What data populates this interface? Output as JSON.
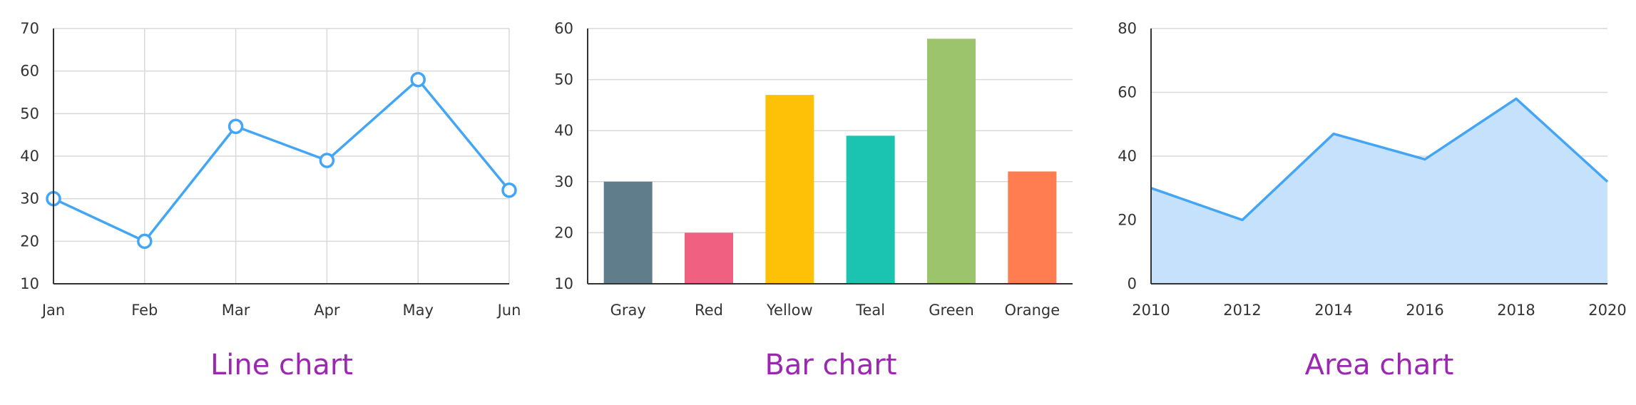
{
  "colors": {
    "line": "#42a5f5",
    "area_fill": "#c6e1fb",
    "grid": "#d9d9d9",
    "axis": "#333333",
    "caption": "#9c27b0"
  },
  "chart_data": [
    {
      "type": "line",
      "caption": "Line chart",
      "categories": [
        "Jan",
        "Feb",
        "Mar",
        "Apr",
        "May",
        "Jun"
      ],
      "values": [
        30,
        20,
        47,
        39,
        58,
        32
      ],
      "ylim": [
        10,
        70
      ],
      "yticks": [
        10,
        20,
        30,
        40,
        50,
        60,
        70
      ],
      "grid": "both",
      "markers": "hollow-circle"
    },
    {
      "type": "bar",
      "caption": "Bar chart",
      "categories": [
        "Gray",
        "Red",
        "Yellow",
        "Teal",
        "Green",
        "Orange"
      ],
      "values": [
        30,
        20,
        47,
        39,
        58,
        32
      ],
      "bar_colors": [
        "#607d8b",
        "#f06080",
        "#ffc107",
        "#1bc4b0",
        "#9bc46c",
        "#ff7d50"
      ],
      "ylim": [
        10,
        60
      ],
      "yticks": [
        10,
        20,
        30,
        40,
        50,
        60
      ],
      "grid": "horizontal"
    },
    {
      "type": "area",
      "caption": "Area chart",
      "x": [
        "2010",
        "2012",
        "2014",
        "2016",
        "2018",
        "2020"
      ],
      "values": [
        30,
        20,
        47,
        39,
        58,
        32
      ],
      "ylim": [
        0,
        80
      ],
      "yticks": [
        0,
        20,
        40,
        60,
        80
      ],
      "grid": "horizontal"
    }
  ]
}
